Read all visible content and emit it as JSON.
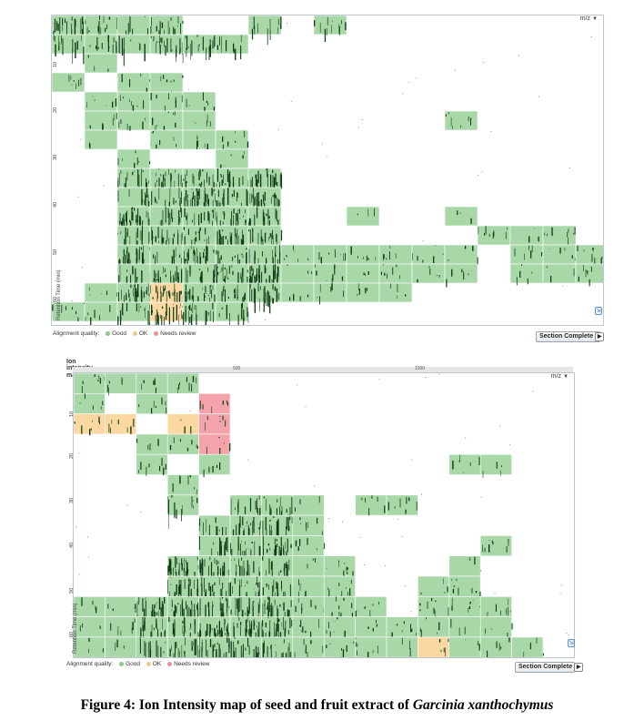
{
  "panels": [
    {
      "id": "top",
      "mz_label": "m/z",
      "yaxis_title": "Retention Time (min)",
      "yticks": [
        "10",
        "20",
        "30",
        "40",
        "50",
        "60"
      ],
      "legend": {
        "prefix": "Alignment quality:",
        "items": [
          {
            "label": "Good",
            "color": "#8cc78c"
          },
          {
            "label": "OK",
            "color": "#f3c98b"
          },
          {
            "label": "Needs review",
            "color": "#ec8f96"
          }
        ]
      },
      "button_label": "Section Complete"
    },
    {
      "id": "bottom",
      "title": "Ion intensity map",
      "ruler_ticks": [
        "500",
        "1000"
      ],
      "mz_label": "m/z",
      "yaxis_title": "Retention Time (min)",
      "yticks": [
        "10",
        "20",
        "30",
        "40",
        "50",
        "60"
      ],
      "legend": {
        "prefix": "Alignment quality:",
        "items": [
          {
            "label": "Good",
            "color": "#8cc78c"
          },
          {
            "label": "OK",
            "color": "#f3c98b"
          },
          {
            "label": "Needs review",
            "color": "#ec8f96"
          }
        ]
      },
      "button_label": "Section Complete"
    }
  ],
  "colors": {
    "good": "#a8d8a8",
    "ok": "#fbd7a2",
    "review": "#f5a3aa",
    "peak": "#0d3b12"
  },
  "caption": {
    "prefix": "Figure 4: Ion Intensity map of seed and fruit extract of ",
    "species": "Garcinia xanthochymus"
  }
}
